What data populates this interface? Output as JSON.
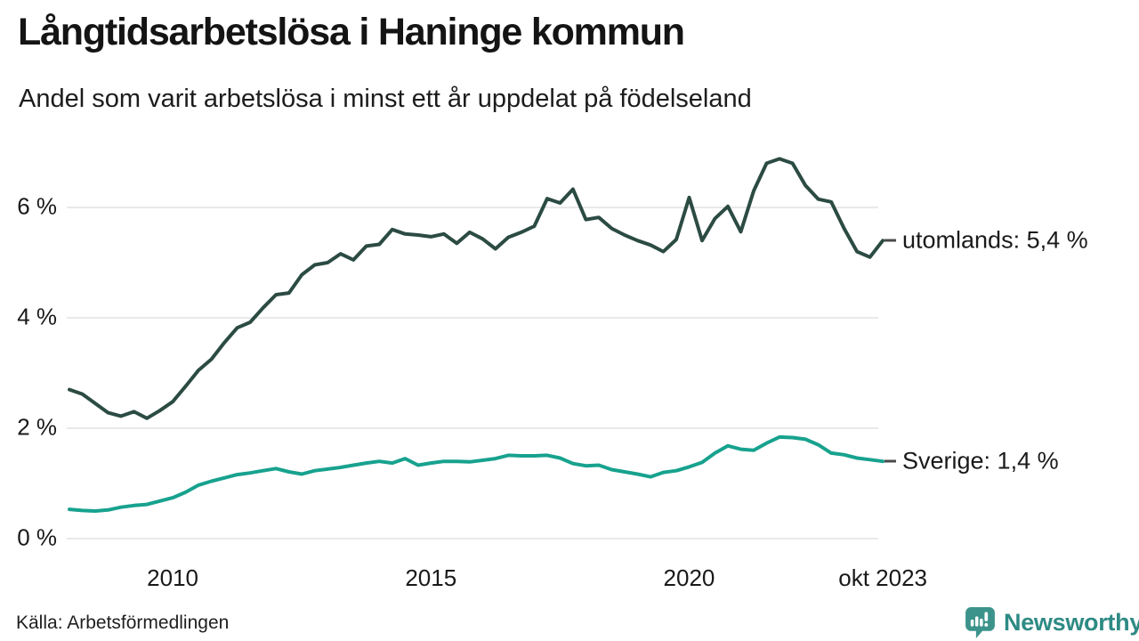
{
  "footer": {
    "source": "Källa: Arbetsförmedlingen",
    "brand": "Newsworthy",
    "brand_text_color": "#2E8A84",
    "logo_background_color": "#3C938C"
  },
  "chart_data": {
    "type": "line",
    "title": "Långtidsarbetslösa i Haninge kommun",
    "subtitle": "Andel som varit arbetslösa i minst ett år uppdelat på födelseland",
    "grid": "horizontal-only",
    "gridline_color": "#e2e2e2",
    "axis_text_color": "#191919",
    "legend_position": "end-of-line-labels",
    "xlim": [
      2008.0,
      2023.83
    ],
    "ylim": [
      0,
      7
    ],
    "x_axis": {
      "ticks": [
        {
          "label": "2010",
          "t": 2010
        },
        {
          "label": "2015",
          "t": 2015
        },
        {
          "label": "2020",
          "t": 2020
        },
        {
          "label": "okt 2023",
          "t": 2023.75
        }
      ]
    },
    "y_axis": {
      "unit": "%",
      "ticks": [
        {
          "label": "0 %",
          "value": 0
        },
        {
          "label": "2 %",
          "value": 2
        },
        {
          "label": "4 %",
          "value": 4
        },
        {
          "label": "6 %",
          "value": 6
        }
      ]
    },
    "series": [
      {
        "name": "utomlands",
        "label": "utomlands: 5,4 %",
        "last_value_label": "5,4 %",
        "color": "#2B4B43",
        "points": [
          [
            2008,
            2.7
          ],
          [
            2008.25,
            2.62
          ],
          [
            2008.5,
            2.45
          ],
          [
            2008.75,
            2.28
          ],
          [
            2009,
            2.22
          ],
          [
            2009.25,
            2.3
          ],
          [
            2009.5,
            2.18
          ],
          [
            2009.75,
            2.32
          ],
          [
            2010,
            2.48
          ],
          [
            2010.25,
            2.76
          ],
          [
            2010.5,
            3.05
          ],
          [
            2010.75,
            3.25
          ],
          [
            2011,
            3.55
          ],
          [
            2011.25,
            3.82
          ],
          [
            2011.5,
            3.92
          ],
          [
            2011.75,
            4.18
          ],
          [
            2012,
            4.42
          ],
          [
            2012.25,
            4.45
          ],
          [
            2012.5,
            4.78
          ],
          [
            2012.75,
            4.96
          ],
          [
            2013,
            5.0
          ],
          [
            2013.25,
            5.16
          ],
          [
            2013.5,
            5.05
          ],
          [
            2013.75,
            5.3
          ],
          [
            2014,
            5.33
          ],
          [
            2014.25,
            5.6
          ],
          [
            2014.5,
            5.52
          ],
          [
            2014.75,
            5.5
          ],
          [
            2015,
            5.47
          ],
          [
            2015.25,
            5.52
          ],
          [
            2015.5,
            5.35
          ],
          [
            2015.75,
            5.55
          ],
          [
            2016,
            5.43
          ],
          [
            2016.25,
            5.25
          ],
          [
            2016.5,
            5.46
          ],
          [
            2016.75,
            5.55
          ],
          [
            2017,
            5.66
          ],
          [
            2017.25,
            6.16
          ],
          [
            2017.5,
            6.08
          ],
          [
            2017.75,
            6.33
          ],
          [
            2018,
            5.78
          ],
          [
            2018.25,
            5.82
          ],
          [
            2018.5,
            5.62
          ],
          [
            2018.75,
            5.5
          ],
          [
            2019,
            5.4
          ],
          [
            2019.25,
            5.32
          ],
          [
            2019.5,
            5.2
          ],
          [
            2019.75,
            5.42
          ],
          [
            2020,
            6.18
          ],
          [
            2020.25,
            5.4
          ],
          [
            2020.5,
            5.8
          ],
          [
            2020.75,
            6.02
          ],
          [
            2021,
            5.56
          ],
          [
            2021.25,
            6.3
          ],
          [
            2021.5,
            6.8
          ],
          [
            2021.75,
            6.88
          ],
          [
            2022,
            6.8
          ],
          [
            2022.25,
            6.4
          ],
          [
            2022.5,
            6.15
          ],
          [
            2022.75,
            6.1
          ],
          [
            2023,
            5.62
          ],
          [
            2023.25,
            5.2
          ],
          [
            2023.5,
            5.1
          ],
          [
            2023.75,
            5.4
          ]
        ]
      },
      {
        "name": "Sverige",
        "label": "Sverige: 1,4 %",
        "last_value_label": "1,4 %",
        "color": "#17A28E",
        "points": [
          [
            2008,
            0.53
          ],
          [
            2008.25,
            0.51
          ],
          [
            2008.5,
            0.5
          ],
          [
            2008.75,
            0.52
          ],
          [
            2009,
            0.57
          ],
          [
            2009.25,
            0.6
          ],
          [
            2009.5,
            0.62
          ],
          [
            2009.75,
            0.68
          ],
          [
            2010,
            0.74
          ],
          [
            2010.25,
            0.84
          ],
          [
            2010.5,
            0.97
          ],
          [
            2010.75,
            1.04
          ],
          [
            2011,
            1.1
          ],
          [
            2011.25,
            1.16
          ],
          [
            2011.5,
            1.19
          ],
          [
            2011.75,
            1.23
          ],
          [
            2012,
            1.27
          ],
          [
            2012.25,
            1.21
          ],
          [
            2012.5,
            1.17
          ],
          [
            2012.75,
            1.23
          ],
          [
            2013,
            1.26
          ],
          [
            2013.25,
            1.29
          ],
          [
            2013.5,
            1.33
          ],
          [
            2013.75,
            1.37
          ],
          [
            2014,
            1.4
          ],
          [
            2014.25,
            1.37
          ],
          [
            2014.5,
            1.45
          ],
          [
            2014.75,
            1.33
          ],
          [
            2015,
            1.37
          ],
          [
            2015.25,
            1.4
          ],
          [
            2015.5,
            1.4
          ],
          [
            2015.75,
            1.39
          ],
          [
            2016,
            1.42
          ],
          [
            2016.25,
            1.45
          ],
          [
            2016.5,
            1.51
          ],
          [
            2016.75,
            1.5
          ],
          [
            2017,
            1.5
          ],
          [
            2017.25,
            1.51
          ],
          [
            2017.5,
            1.46
          ],
          [
            2017.75,
            1.36
          ],
          [
            2018,
            1.32
          ],
          [
            2018.25,
            1.33
          ],
          [
            2018.5,
            1.25
          ],
          [
            2018.75,
            1.21
          ],
          [
            2019,
            1.17
          ],
          [
            2019.25,
            1.12
          ],
          [
            2019.5,
            1.2
          ],
          [
            2019.75,
            1.23
          ],
          [
            2020,
            1.3
          ],
          [
            2020.25,
            1.38
          ],
          [
            2020.5,
            1.55
          ],
          [
            2020.75,
            1.68
          ],
          [
            2021,
            1.62
          ],
          [
            2021.25,
            1.6
          ],
          [
            2021.5,
            1.73
          ],
          [
            2021.75,
            1.84
          ],
          [
            2022,
            1.83
          ],
          [
            2022.25,
            1.8
          ],
          [
            2022.5,
            1.7
          ],
          [
            2022.75,
            1.55
          ],
          [
            2023,
            1.52
          ],
          [
            2023.25,
            1.46
          ],
          [
            2023.5,
            1.43
          ],
          [
            2023.75,
            1.4
          ]
        ]
      }
    ]
  }
}
